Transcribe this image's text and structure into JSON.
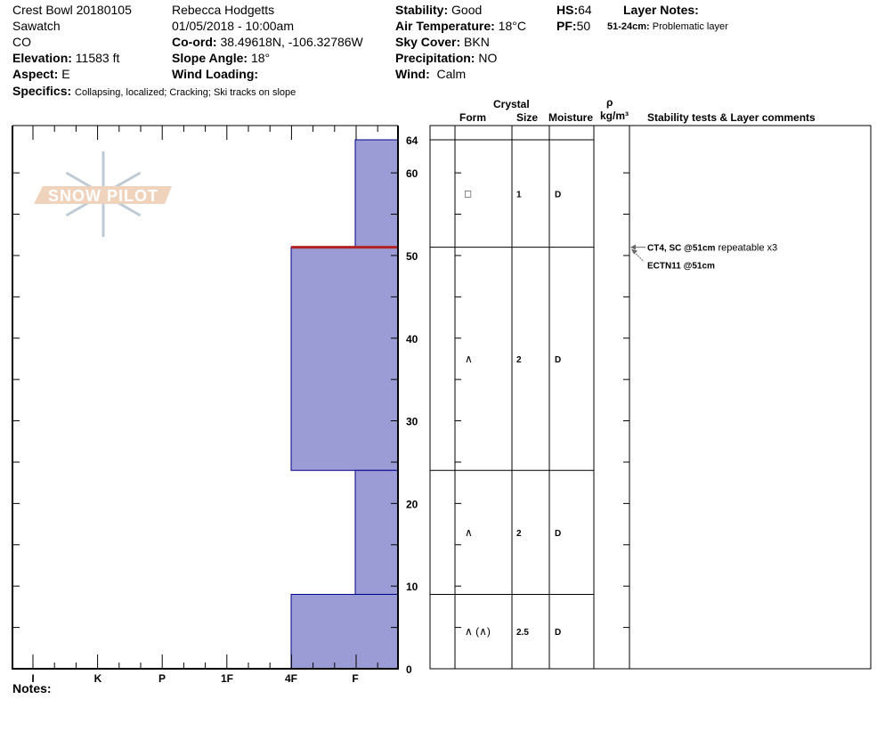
{
  "header": {
    "location": "Crest Bowl 20180105",
    "range": "Sawatch",
    "state": "CO",
    "elevation_label": "Elevation:",
    "elevation": "11583 ft",
    "aspect_label": "Aspect:",
    "aspect": "E",
    "specifics_label": "Specifics:",
    "specifics": "Collapsing, localized;  Cracking;  Ski tracks on slope",
    "observer": "Rebecca Hodgetts",
    "datetime": "01/05/2018 - 10:00am",
    "coord_label": "Co-ord:",
    "coord": "38.49618N, -106.32786W",
    "slope_label": "Slope Angle:",
    "slope": "18°",
    "wind_loading_label": "Wind Loading:",
    "wind_loading": "",
    "stability_label": "Stability:",
    "stability": "Good",
    "air_temp_label": "Air Temperature:",
    "air_temp": "18°C",
    "sky_label": "Sky Cover:",
    "sky": "BKN",
    "precip_label": "Precipitation:",
    "precip": "NO",
    "wind_label": "Wind:",
    "wind": "Calm",
    "hs_label": "HS:",
    "hs": "64",
    "pf_label": "PF:",
    "pf": "50",
    "layer_notes_label": "Layer Notes:",
    "layer_note_range": "51-24cm:",
    "layer_note_text": "Problematic layer"
  },
  "table_headers": {
    "crystal": "Crystal",
    "form": "Form",
    "size": "Size",
    "moisture": "Moisture",
    "rho": "ρ",
    "density_unit": "kg/m³",
    "comments": "Stability tests & Layer comments"
  },
  "notes_label": "Notes:",
  "logo_text": "SNOW PILOT",
  "colors": {
    "layer_fill": "#9b9bd5",
    "layer_stroke": "#00008b",
    "problem_layer": "#b22222"
  },
  "chart_data": {
    "type": "bar",
    "orientation": "horizontal-step",
    "ylabel": "",
    "ylim": [
      0,
      64
    ],
    "y_ticks": [
      0,
      10,
      20,
      30,
      40,
      50,
      60,
      64
    ],
    "x_categories": [
      "I",
      "K",
      "P",
      "1F",
      "4F",
      "F"
    ],
    "layers": [
      {
        "top": 64,
        "bottom": 51,
        "hardness": "F",
        "form": "□",
        "size": "1",
        "moisture": "D"
      },
      {
        "top": 51,
        "bottom": 24,
        "hardness": "4F",
        "form": "∧",
        "size": "2",
        "moisture": "D"
      },
      {
        "top": 24,
        "bottom": 9,
        "hardness": "F",
        "form": "∧",
        "size": "2",
        "moisture": "D"
      },
      {
        "top": 9,
        "bottom": 0,
        "hardness": "4F",
        "form": "∧ (∧)",
        "size": "2.5",
        "moisture": "D"
      }
    ],
    "problem_layer_depth": 51,
    "stability_tests": [
      {
        "depth": 51,
        "label": "CT4, SC @51cm",
        "comment": "repeatable x3"
      },
      {
        "depth": 51,
        "label": "ECTN11 @51cm",
        "comment": ""
      }
    ]
  }
}
